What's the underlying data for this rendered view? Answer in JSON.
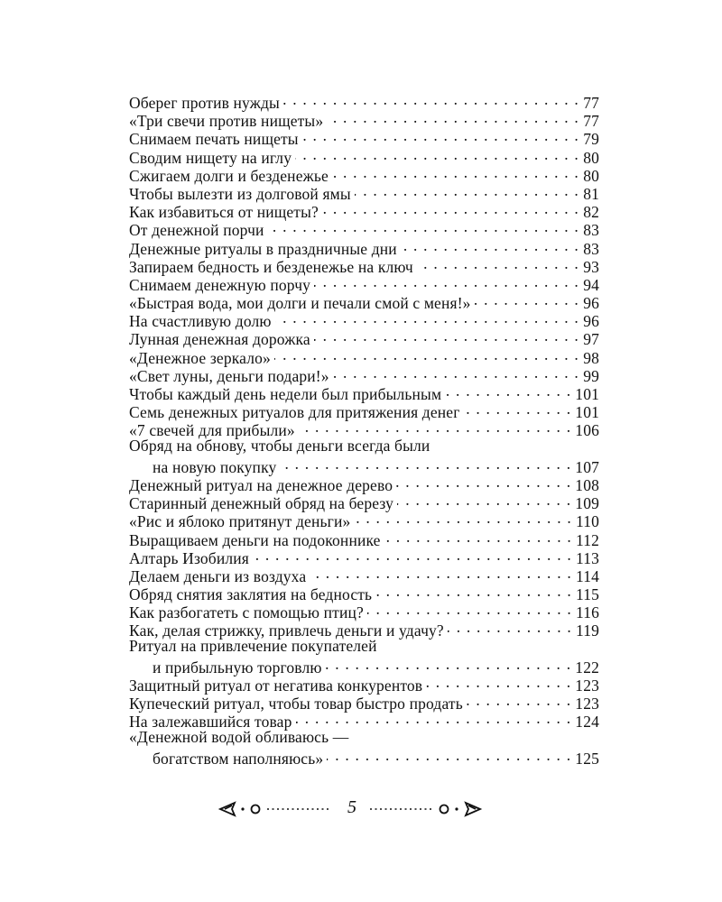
{
  "toc": [
    {
      "title": "Оберег против нужды",
      "page": "77"
    },
    {
      "title": "«Три свечи против нищеты»",
      "page": "77"
    },
    {
      "title": "Снимаем печать нищеты",
      "page": "79"
    },
    {
      "title": "Сводим нищету на иглу",
      "page": "80"
    },
    {
      "title": "Сжигаем долги и безденежье",
      "page": "80"
    },
    {
      "title": "Чтобы вылезти из долговой ямы",
      "page": "81"
    },
    {
      "title": "Как избавиться от нищеты?",
      "page": "82"
    },
    {
      "title": "От денежной порчи",
      "page": "83"
    },
    {
      "title": "Денежные ритуалы в праздничные дни",
      "page": "83"
    },
    {
      "title": "Запираем бедность и безденежье на ключ",
      "page": "93"
    },
    {
      "title": "Снимаем денежную порчу",
      "page": "94"
    },
    {
      "title": "«Быстрая вода, мои долги и печали смой с меня!»",
      "page": "96"
    },
    {
      "title": "На счастливую долю",
      "page": "96"
    },
    {
      "title": "Лунная денежная дорожка",
      "page": "97"
    },
    {
      "title": "«Денежное зеркало»",
      "page": "98"
    },
    {
      "title": "«Свет луны, деньги подари!»",
      "page": "99"
    },
    {
      "title": "Чтобы каждый день недели был прибыльным",
      "page": "101"
    },
    {
      "title": "Семь денежных ритуалов для притяжения денег",
      "page": "101"
    },
    {
      "title": "«7 свечей для прибыли»",
      "page": "106"
    },
    {
      "title": "Обряд на обнову, чтобы деньги всегда были",
      "page": ""
    },
    {
      "title": "на новую покупку",
      "page": "107",
      "indent": true
    },
    {
      "title": "Денежный ритуал на денежное дерево",
      "page": "108"
    },
    {
      "title": "Старинный денежный обряд на березу",
      "page": "109"
    },
    {
      "title": "«Рис и яблоко притянут деньги»",
      "page": "110"
    },
    {
      "title": "Выращиваем деньги на подоконнике",
      "page": "112"
    },
    {
      "title": "Алтарь Изобилия",
      "page": "113"
    },
    {
      "title": "Делаем деньги из воздуха",
      "page": "114"
    },
    {
      "title": "Обряд снятия заклятия на бедность",
      "page": "115"
    },
    {
      "title": "Как разбогатеть с помощью птиц?",
      "page": "116"
    },
    {
      "title": "Как, делая стрижку, привлечь деньги и удачу?",
      "page": "119"
    },
    {
      "title": "Ритуал на привлечение покупателей",
      "page": ""
    },
    {
      "title": "и прибыльную торговлю",
      "page": "122",
      "indent": true
    },
    {
      "title": "Защитный ритуал от негатива конкурентов",
      "page": "123"
    },
    {
      "title": "Купеческий ритуал, чтобы товар быстро продать",
      "page": "123"
    },
    {
      "title": "На залежавшийся товар",
      "page": "124"
    },
    {
      "title": "«Денежной водой обливаюсь —",
      "page": ""
    },
    {
      "title": "богатством наполняюсь»",
      "page": "125",
      "indent": true
    }
  ],
  "footer": {
    "page_number": "5",
    "ornament": "arrow-circle-dotted-ornament"
  }
}
